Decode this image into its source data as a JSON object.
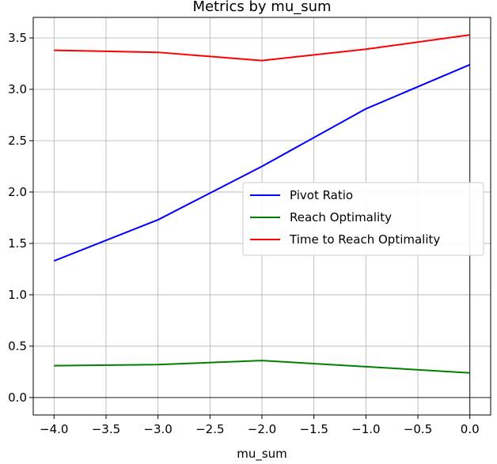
{
  "chart_data": {
    "type": "line",
    "title": "Metrics by mu_sum",
    "xlabel": "mu_sum",
    "ylabel": "",
    "xlim": [
      -4.2,
      0.2
    ],
    "ylim": [
      -0.17,
      3.7
    ],
    "grid": true,
    "legend_position": "center-right",
    "x": [
      -4.0,
      -3.0,
      -2.0,
      -1.0,
      0.0
    ],
    "x_ticks": [
      -4.0,
      -3.5,
      -3.0,
      -2.5,
      -2.0,
      -1.5,
      -1.0,
      -0.5,
      0.0
    ],
    "x_tick_labels": [
      "−4.0",
      "−3.5",
      "−3.0",
      "−2.5",
      "−2.0",
      "−1.5",
      "−1.0",
      "−0.5",
      "0.0"
    ],
    "y_ticks": [
      0.0,
      0.5,
      1.0,
      1.5,
      2.0,
      2.5,
      3.0,
      3.5
    ],
    "y_tick_labels": [
      "0.0",
      "0.5",
      "1.0",
      "1.5",
      "2.0",
      "2.5",
      "3.0",
      "3.5"
    ],
    "reference_lines": {
      "x": 0.0,
      "y": 0.0
    },
    "series": [
      {
        "name": "Pivot Ratio",
        "color": "#0000ff",
        "values": [
          1.33,
          1.73,
          2.25,
          2.81,
          3.24
        ]
      },
      {
        "name": "Reach Optimality",
        "color": "#008000",
        "values": [
          0.31,
          0.32,
          0.36,
          0.3,
          0.24
        ]
      },
      {
        "name": "Time to Reach Optimality",
        "color": "#ff0000",
        "values": [
          3.38,
          3.36,
          3.28,
          3.39,
          3.53
        ]
      }
    ]
  }
}
